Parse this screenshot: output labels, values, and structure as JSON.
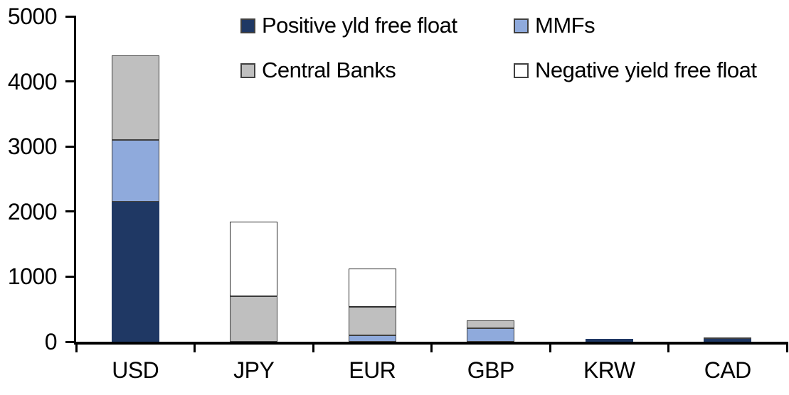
{
  "chart": {
    "background_color": "#ffffff",
    "axis_color": "#000000",
    "text_color": "#000000",
    "border_color": "#404040"
  },
  "chart_data": {
    "type": "bar",
    "stacked": true,
    "title": "",
    "xlabel": "",
    "ylabel": "",
    "categories": [
      "USD",
      "JPY",
      "EUR",
      "GBP",
      "KRW",
      "CAD"
    ],
    "series": [
      {
        "name": "Positive yld free float",
        "color": "#1f3864",
        "border": "#1f3864",
        "values": [
          2150,
          0,
          0,
          0,
          45,
          40
        ]
      },
      {
        "name": "MMFs",
        "color": "#8faadc",
        "border": "#404040",
        "values": [
          950,
          0,
          100,
          210,
          0,
          0
        ]
      },
      {
        "name": "Central Banks",
        "color": "#bfbfbf",
        "border": "#404040",
        "values": [
          1300,
          700,
          430,
          120,
          0,
          30
        ]
      },
      {
        "name": "Negative yield free float",
        "color": "#ffffff",
        "border": "#262626",
        "values": [
          0,
          1150,
          590,
          0,
          0,
          0
        ]
      }
    ],
    "totals": [
      4400,
      1850,
      1120,
      330,
      45,
      70
    ],
    "ylim": [
      0,
      5000
    ],
    "yticks": [
      0,
      1000,
      2000,
      3000,
      4000,
      5000
    ],
    "grid": false,
    "legend_position": "top, two columns, two rows"
  }
}
